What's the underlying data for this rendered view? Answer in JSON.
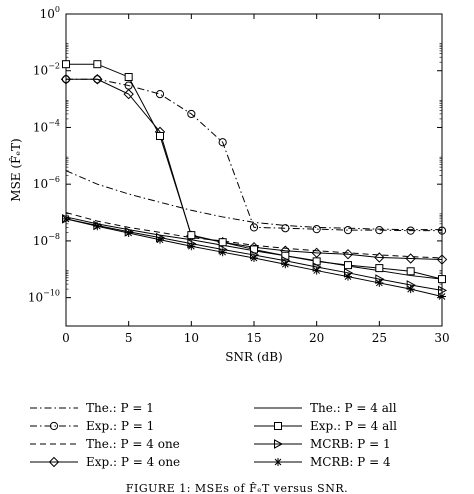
{
  "chart_data": {
    "type": "line",
    "xlabel": "SNR (dB)",
    "ylabel": "MSE (F̂ₑT)",
    "xlim": [
      0,
      30
    ],
    "ylim": [
      1e-11,
      1
    ],
    "yscale": "log",
    "grid": false,
    "legend_placement": "below",
    "x_ticks": [
      "0",
      "5",
      "10",
      "15",
      "20",
      "25",
      "30"
    ],
    "y_ticks": [
      {
        "base": "10",
        "exp": "0",
        "value": 1
      },
      {
        "base": "10",
        "exp": "−2",
        "value": 0.01
      },
      {
        "base": "10",
        "exp": "−4",
        "value": 0.0001
      },
      {
        "base": "10",
        "exp": "−6",
        "value": 1e-06
      },
      {
        "base": "10",
        "exp": "−8",
        "value": 1e-08
      },
      {
        "base": "10",
        "exp": "−10",
        "value": 1e-10
      }
    ],
    "series": [
      {
        "name": "The.: P = 1",
        "style": "dashdot",
        "marker": "none",
        "x": [
          0,
          2.5,
          5,
          7.5,
          10,
          12.5,
          15,
          17.5,
          20,
          22.5,
          25,
          27.5,
          30
        ],
        "y": [
          3e-06,
          1e-06,
          4.5e-07,
          2.3e-07,
          1.2e-07,
          7e-08,
          4.5e-08,
          3.5e-08,
          3e-08,
          2.8e-08,
          2.6e-08,
          2.5e-08,
          2.5e-08
        ]
      },
      {
        "name": "Exp.: P = 1",
        "style": "dashdot",
        "marker": "circle",
        "x": [
          0,
          2.5,
          5,
          7.5,
          10,
          12.5,
          15,
          17.5,
          20,
          22.5,
          25,
          27.5,
          30
        ],
        "y": [
          0.005,
          0.005,
          0.003,
          0.0015,
          0.0003,
          3e-05,
          3e-08,
          2.8e-08,
          2.6e-08,
          2.4e-08,
          2.4e-08,
          2.3e-08,
          2.3e-08
        ]
      },
      {
        "name": "The.: P = 4 one",
        "style": "dashed",
        "marker": "none",
        "x": [
          0,
          2.5,
          5,
          7.5,
          10,
          12.5,
          15,
          17.5,
          20,
          22.5,
          25,
          27.5,
          30
        ],
        "y": [
          1e-07,
          5e-08,
          3e-08,
          2e-08,
          1.3e-08,
          1e-08,
          7e-09,
          5.5e-09,
          4.5e-09,
          3.8e-09,
          3.2e-09,
          2.8e-09,
          2.5e-09
        ]
      },
      {
        "name": "Exp.: P = 4 one",
        "style": "solid",
        "marker": "diamond",
        "x": [
          0,
          2.5,
          5,
          7.5,
          10,
          12.5,
          15,
          17.5,
          20,
          22.5,
          25,
          27.5,
          30
        ],
        "y": [
          0.005,
          0.005,
          0.0015,
          7e-05,
          1.5e-08,
          9e-09,
          6e-09,
          4.5e-09,
          3.8e-09,
          3.4e-09,
          2.6e-09,
          2.4e-09,
          2.2e-09
        ]
      },
      {
        "name": "The.: P = 4 all",
        "style": "solid",
        "marker": "none",
        "x": [
          0,
          2.5,
          5,
          7.5,
          10,
          12.5,
          15,
          17.5,
          20,
          22.5,
          25,
          27.5,
          30
        ],
        "y": [
          7e-08,
          4e-08,
          2.5e-08,
          1.6e-08,
          1.1e-08,
          7e-09,
          4.5e-09,
          3e-09,
          2e-09,
          1.3e-09,
          9e-10,
          6e-10,
          4.5e-10
        ]
      },
      {
        "name": "Exp.: P = 4 all",
        "style": "solid",
        "marker": "square",
        "x": [
          0,
          2.5,
          5,
          7.5,
          10,
          12.5,
          15,
          17.5,
          20,
          22.5,
          25,
          27.5,
          30
        ],
        "y": [
          0.017,
          0.017,
          0.006,
          5e-05,
          1.6e-08,
          9e-09,
          5e-09,
          3e-09,
          1.9e-09,
          1.4e-09,
          1.1e-09,
          8.5e-10,
          4.5e-10
        ]
      },
      {
        "name": "MCRB: P = 1",
        "style": "solid",
        "marker": "triangle-right",
        "x": [
          0,
          2.5,
          5,
          7.5,
          10,
          12.5,
          15,
          17.5,
          20,
          22.5,
          25,
          27.5,
          30
        ],
        "y": [
          6e-08,
          3.5e-08,
          2.1e-08,
          1.3e-08,
          8e-09,
          5e-09,
          3.2e-09,
          2e-09,
          1.2e-09,
          7.5e-10,
          4.5e-10,
          2.8e-10,
          1.8e-10
        ]
      },
      {
        "name": "MCRB: P = 4",
        "style": "solid",
        "marker": "star",
        "x": [
          0,
          2.5,
          5,
          7.5,
          10,
          12.5,
          15,
          17.5,
          20,
          22.5,
          25,
          27.5,
          30
        ],
        "y": [
          6e-08,
          3.3e-08,
          1.9e-08,
          1.1e-08,
          6.5e-09,
          4e-09,
          2.5e-09,
          1.5e-09,
          9e-10,
          5.5e-10,
          3.3e-10,
          2e-10,
          1.1e-10
        ]
      }
    ],
    "caption": "FIGURE 1: MSEs of F̂ₑT versus SNR."
  }
}
